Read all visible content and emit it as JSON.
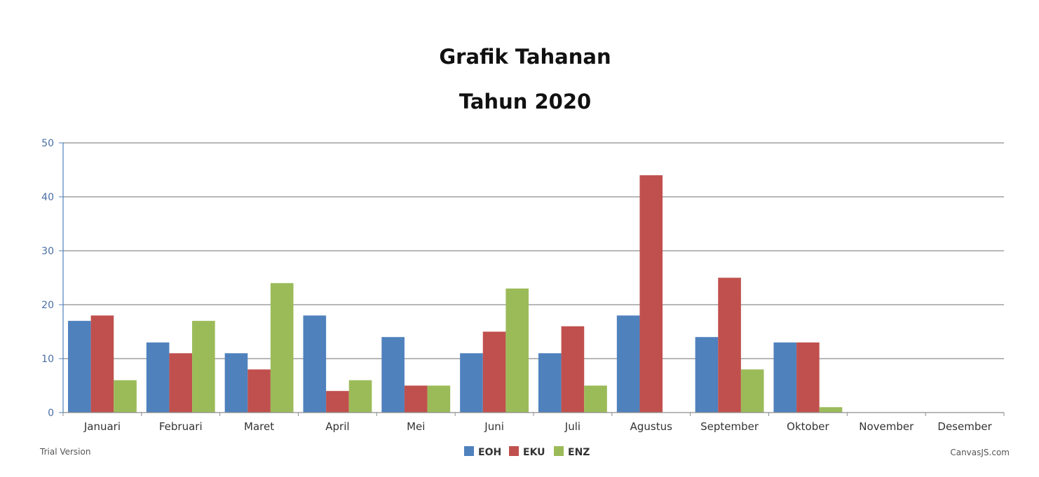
{
  "chart_data": {
    "type": "bar",
    "title": "Grafik Tahanan",
    "subtitle": "Tahun 2020",
    "categories": [
      "Januari",
      "Februari",
      "Maret",
      "April",
      "Mei",
      "Juni",
      "Juli",
      "Agustus",
      "September",
      "Oktober",
      "November",
      "Desember"
    ],
    "series": [
      {
        "name": "EOH",
        "color": "#4f81bd",
        "values": [
          17,
          13,
          11,
          18,
          14,
          11,
          11,
          18,
          14,
          13,
          null,
          null
        ]
      },
      {
        "name": "EKU",
        "color": "#c0504d",
        "values": [
          18,
          11,
          8,
          4,
          5,
          15,
          16,
          44,
          25,
          13,
          null,
          null
        ]
      },
      {
        "name": "ENZ",
        "color": "#9bbb59",
        "values": [
          6,
          17,
          24,
          6,
          5,
          23,
          5,
          null,
          8,
          1,
          null,
          null
        ]
      }
    ],
    "ylim": [
      0,
      50
    ],
    "yticks": [
      0,
      10,
      20,
      30,
      40,
      50
    ],
    "grid": true,
    "legend_position": "bottom-center"
  },
  "footer": {
    "left": "Trial Version",
    "right": "CanvasJS.com"
  }
}
